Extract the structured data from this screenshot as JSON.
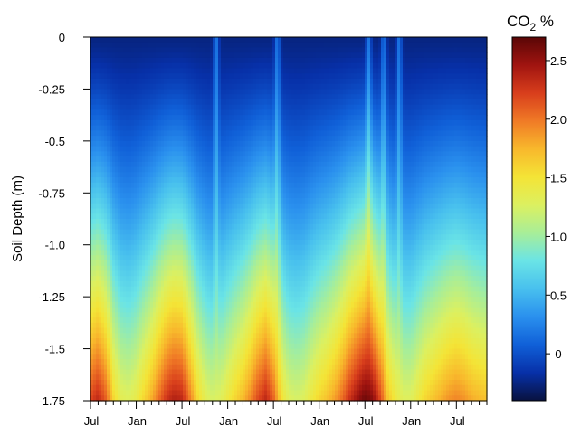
{
  "chart_data": {
    "type": "heatmap",
    "ylabel": "Soil Depth (m)",
    "y_ticks": [
      "0",
      "-0.25",
      "-0.5",
      "-0.75",
      "-1.0",
      "-1.25",
      "-1.5",
      "-1.75"
    ],
    "y_tick_values": [
      0,
      -0.25,
      -0.5,
      -0.75,
      -1.0,
      -1.25,
      -1.5,
      -1.75
    ],
    "ylim": [
      -1.75,
      0
    ],
    "x_ticks": [
      "Jul",
      "Jan",
      "Jul",
      "Jan",
      "Jul",
      "Jan",
      "Jul",
      "Jan",
      "Jul"
    ],
    "x_tick_months": [
      0,
      6,
      12,
      18,
      24,
      30,
      36,
      42,
      48
    ],
    "xlim_months": [
      0,
      52
    ],
    "colorbar": {
      "title_base": "CO",
      "title_sub": "2",
      "title_unit": " %",
      "ticks": [
        "0",
        "0.5",
        "1.0",
        "1.5",
        "2.0",
        "2.5"
      ],
      "tick_values": [
        0,
        0.5,
        1.0,
        1.5,
        2.0,
        2.5
      ],
      "range": [
        -0.4,
        2.7
      ],
      "colors": [
        "#08123f",
        "#0730a8",
        "#1060d8",
        "#2a90ee",
        "#48c0ee",
        "#6ae4e6",
        "#a8ee98",
        "#dcf060",
        "#f4e436",
        "#f8b82c",
        "#f07a26",
        "#d83e1c",
        "#a01410",
        "#5a0606"
      ]
    },
    "surface_co2_percent": -0.25,
    "deep_co2_by_month": [
      [
        0,
        2.2
      ],
      [
        1,
        2.35
      ],
      [
        2,
        2.1
      ],
      [
        3,
        1.6
      ],
      [
        4,
        1.35
      ],
      [
        5,
        1.3
      ],
      [
        6,
        1.4
      ],
      [
        7,
        1.6
      ],
      [
        8,
        1.8
      ],
      [
        9,
        2.05
      ],
      [
        10,
        2.3
      ],
      [
        11,
        2.4
      ],
      [
        12,
        2.35
      ],
      [
        13,
        2.0
      ],
      [
        14,
        1.6
      ],
      [
        15,
        1.35
      ],
      [
        16,
        1.25
      ],
      [
        17,
        1.3
      ],
      [
        18,
        1.45
      ],
      [
        19,
        1.6
      ],
      [
        20,
        1.75
      ],
      [
        21,
        1.95
      ],
      [
        22,
        2.2
      ],
      [
        23,
        2.35
      ],
      [
        24,
        2.1
      ],
      [
        25,
        1.55
      ],
      [
        26,
        1.3
      ],
      [
        27,
        1.25
      ],
      [
        28,
        1.3
      ],
      [
        29,
        1.45
      ],
      [
        30,
        1.6
      ],
      [
        31,
        1.7
      ],
      [
        32,
        1.85
      ],
      [
        33,
        2.05
      ],
      [
        34,
        2.3
      ],
      [
        35,
        2.5
      ],
      [
        36,
        2.65
      ],
      [
        37,
        2.55
      ],
      [
        38,
        2.2
      ],
      [
        39,
        1.7
      ],
      [
        40,
        1.45
      ],
      [
        41,
        1.3
      ],
      [
        42,
        1.3
      ],
      [
        43,
        1.45
      ],
      [
        44,
        1.6
      ],
      [
        45,
        1.7
      ],
      [
        46,
        1.8
      ],
      [
        47,
        1.9
      ],
      [
        48,
        1.95
      ],
      [
        49,
        1.9
      ],
      [
        50,
        1.8
      ],
      [
        51,
        1.75
      ],
      [
        52,
        1.7
      ]
    ],
    "shallow_pulse_months": [
      16.5,
      24.5,
      36.5,
      38.5,
      40.5
    ],
    "depth_shape_exponent": 1.3
  }
}
